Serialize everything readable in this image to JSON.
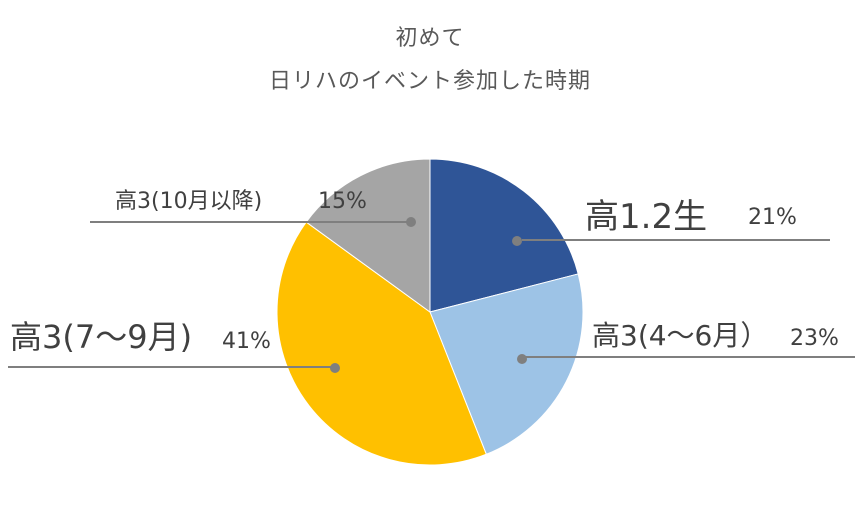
{
  "chart_data": {
    "type": "pie",
    "title_lines": [
      "初めて",
      "日リハのイベント参加した時期"
    ],
    "slices": [
      {
        "label": "高1.2生",
        "value": 21,
        "value_label": "21%",
        "color": "#2F5597"
      },
      {
        "label": "高3(4～6月）",
        "value": 23,
        "value_label": "23%",
        "color": "#9DC3E6"
      },
      {
        "label": "高3(7～9月)",
        "value": 41,
        "value_label": "41%",
        "color": "#FFC000"
      },
      {
        "label": "高3(10月以降)",
        "value": 15,
        "value_label": "15%",
        "color": "#A5A5A5"
      }
    ],
    "start_angle_deg": 0,
    "direction": "clockwise",
    "leader_line_color": "#7F7F7F"
  }
}
